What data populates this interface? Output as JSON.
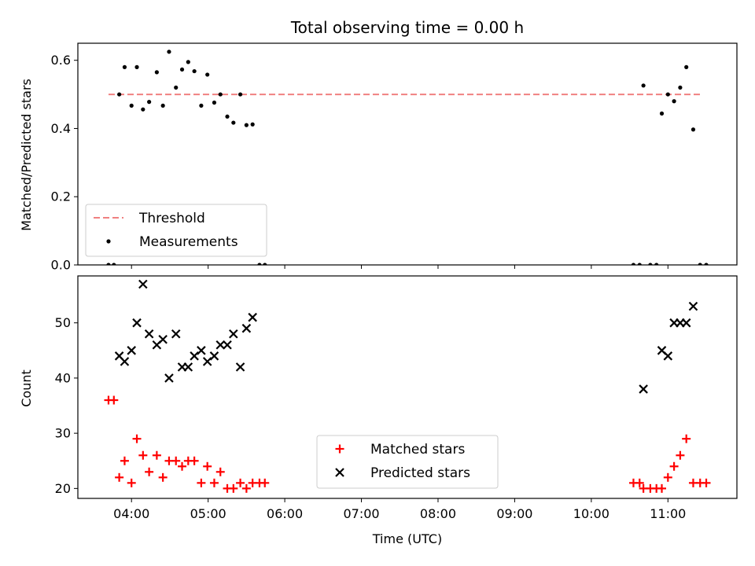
{
  "chart_data": {
    "title": "Total observing time = 0.00 h",
    "xlabel": "Time (UTC)",
    "x_unit": "hours UTC",
    "xlim": [
      3.3,
      11.9
    ],
    "xticks": [
      {
        "value": 4,
        "label": "04:00"
      },
      {
        "value": 5,
        "label": "05:00"
      },
      {
        "value": 6,
        "label": "06:00"
      },
      {
        "value": 7,
        "label": "07:00"
      },
      {
        "value": 8,
        "label": "08:00"
      },
      {
        "value": 9,
        "label": "09:00"
      },
      {
        "value": 10,
        "label": "10:00"
      },
      {
        "value": 11,
        "label": "11:00"
      }
    ],
    "panels": [
      {
        "type": "scatter",
        "ylabel": "Matched/Predicted stars",
        "ylim": [
          0,
          0.65
        ],
        "yticks": [
          {
            "value": 0,
            "label": "0.0"
          },
          {
            "value": 0.2,
            "label": "0.2"
          },
          {
            "value": 0.4,
            "label": "0.4"
          },
          {
            "value": 0.6,
            "label": "0.6"
          }
        ],
        "legend": {
          "placement": "lower-left"
        },
        "threshold": {
          "name": "Threshold",
          "value": 0.5,
          "x": [
            3.7,
            11.45
          ],
          "color": "#f08080"
        },
        "series": [
          {
            "name": "Measurements",
            "color": "#000000",
            "marker": "dot",
            "points": [
              [
                3.7,
                0
              ],
              [
                3.77,
                0
              ],
              [
                3.84,
                0.5
              ],
              [
                3.91,
                0.58
              ],
              [
                4.0,
                0.467
              ],
              [
                4.07,
                0.58
              ],
              [
                4.15,
                0.456
              ],
              [
                4.23,
                0.478
              ],
              [
                4.33,
                0.565
              ],
              [
                4.41,
                0.467
              ],
              [
                4.49,
                0.625
              ],
              [
                4.58,
                0.52
              ],
              [
                4.66,
                0.573
              ],
              [
                4.74,
                0.595
              ],
              [
                4.82,
                0.568
              ],
              [
                4.91,
                0.467
              ],
              [
                4.99,
                0.558
              ],
              [
                5.08,
                0.476
              ],
              [
                5.16,
                0.5
              ],
              [
                5.25,
                0.435
              ],
              [
                5.33,
                0.417
              ],
              [
                5.42,
                0.5
              ],
              [
                5.5,
                0.41
              ],
              [
                5.58,
                0.412
              ],
              [
                5.67,
                0
              ],
              [
                5.74,
                0
              ],
              [
                10.55,
                0
              ],
              [
                10.63,
                0
              ],
              [
                10.68,
                0.526
              ],
              [
                10.77,
                0
              ],
              [
                10.85,
                0
              ],
              [
                10.92,
                0.444
              ],
              [
                11.0,
                0.5
              ],
              [
                11.08,
                0.48
              ],
              [
                11.16,
                0.52
              ],
              [
                11.24,
                0.58
              ],
              [
                11.33,
                0.397
              ],
              [
                11.42,
                0
              ],
              [
                11.5,
                0
              ]
            ]
          }
        ]
      },
      {
        "type": "scatter",
        "ylabel": "Count",
        "ylim": [
          18.2,
          58.5
        ],
        "yticks": [
          {
            "value": 20,
            "label": "20"
          },
          {
            "value": 30,
            "label": "30"
          },
          {
            "value": 40,
            "label": "40"
          },
          {
            "value": 50,
            "label": "50"
          }
        ],
        "legend": {
          "placement": "lower-center"
        },
        "series": [
          {
            "name": "Matched stars",
            "color": "#ff0000",
            "marker": "plus",
            "points": [
              [
                3.7,
                36
              ],
              [
                3.77,
                36
              ],
              [
                3.84,
                22
              ],
              [
                3.91,
                25
              ],
              [
                4.0,
                21
              ],
              [
                4.07,
                29
              ],
              [
                4.15,
                26
              ],
              [
                4.23,
                23
              ],
              [
                4.33,
                26
              ],
              [
                4.41,
                22
              ],
              [
                4.49,
                25
              ],
              [
                4.58,
                25
              ],
              [
                4.66,
                24
              ],
              [
                4.74,
                25
              ],
              [
                4.82,
                25
              ],
              [
                4.91,
                21
              ],
              [
                4.99,
                24
              ],
              [
                5.08,
                21
              ],
              [
                5.16,
                23
              ],
              [
                5.25,
                20
              ],
              [
                5.33,
                20
              ],
              [
                5.42,
                21
              ],
              [
                5.5,
                20
              ],
              [
                5.58,
                21
              ],
              [
                5.67,
                21
              ],
              [
                5.74,
                21
              ],
              [
                10.55,
                21
              ],
              [
                10.63,
                21
              ],
              [
                10.68,
                20
              ],
              [
                10.77,
                20
              ],
              [
                10.85,
                20
              ],
              [
                10.92,
                20
              ],
              [
                11.0,
                22
              ],
              [
                11.08,
                24
              ],
              [
                11.16,
                26
              ],
              [
                11.24,
                29
              ],
              [
                11.33,
                21
              ],
              [
                11.42,
                21
              ],
              [
                11.5,
                21
              ]
            ]
          },
          {
            "name": "Predicted stars",
            "color": "#000000",
            "marker": "x",
            "points": [
              [
                3.84,
                44
              ],
              [
                3.91,
                43
              ],
              [
                4.0,
                45
              ],
              [
                4.07,
                50
              ],
              [
                4.15,
                57
              ],
              [
                4.23,
                48
              ],
              [
                4.33,
                46
              ],
              [
                4.41,
                47
              ],
              [
                4.49,
                40
              ],
              [
                4.58,
                48
              ],
              [
                4.66,
                42
              ],
              [
                4.74,
                42
              ],
              [
                4.82,
                44
              ],
              [
                4.91,
                45
              ],
              [
                4.99,
                43
              ],
              [
                5.08,
                44
              ],
              [
                5.16,
                46
              ],
              [
                5.25,
                46
              ],
              [
                5.33,
                48
              ],
              [
                5.42,
                42
              ],
              [
                5.5,
                49
              ],
              [
                5.58,
                51
              ],
              [
                10.68,
                38
              ],
              [
                10.92,
                45
              ],
              [
                11.0,
                44
              ],
              [
                11.08,
                50
              ],
              [
                11.16,
                50
              ],
              [
                11.24,
                50
              ],
              [
                11.33,
                53
              ]
            ]
          }
        ]
      }
    ]
  }
}
